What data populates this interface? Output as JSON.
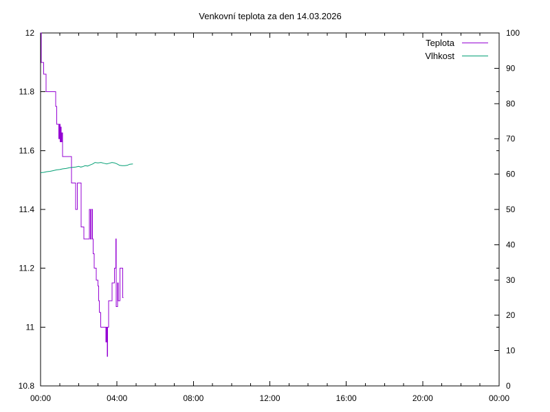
{
  "window": {
    "title": "Venkovní teplota za den 14.03.2026"
  },
  "colors": {
    "background": "#ffffff",
    "axis": "#000000",
    "teplota": "#9400d3",
    "vlhkost": "#009e73"
  },
  "chart_data": {
    "type": "line",
    "title": "Venkovní teplota za den 14.03.2026",
    "xlabel": "",
    "ylabel_left": "",
    "ylabel_right": "",
    "grid": false,
    "legend_position": "top-right-inside",
    "x_axis": {
      "unit": "time-of-day",
      "range_hours": [
        0,
        24
      ],
      "major_tick_hours": [
        0,
        4,
        8,
        12,
        16,
        20,
        24
      ],
      "major_tick_labels": [
        "00:00",
        "04:00",
        "08:00",
        "12:00",
        "16:00",
        "20:00",
        "00:00"
      ],
      "minor_tick_every_hours": 1
    },
    "y_left": {
      "range": [
        10.8,
        12.0
      ],
      "ticks": [
        12,
        11.8,
        11.6,
        11.4,
        11.2,
        11,
        10.8
      ],
      "tick_labels": [
        "12",
        "11.8",
        "11.6",
        "11.4",
        "11.2",
        "11",
        "10.8"
      ]
    },
    "y_right": {
      "range": [
        0,
        100
      ],
      "tick_step": 10,
      "tick_labels": [
        "100",
        "90",
        "80",
        "70",
        "60",
        "50",
        "40",
        "30",
        "20",
        "10",
        "0"
      ],
      "extra_unlabeled_ticks_at_left_values": [
        11.8,
        11.6,
        11.4,
        11.2,
        11.0
      ]
    },
    "series": [
      {
        "name": "Teplota",
        "axis": "left",
        "style": "steps",
        "color": "#9400d3",
        "points": [
          [
            "00:00",
            12.0
          ],
          [
            "00:02",
            11.9
          ],
          [
            "00:10",
            11.86
          ],
          [
            "00:17",
            11.8
          ],
          [
            "00:47",
            11.75
          ],
          [
            "00:51",
            11.69
          ],
          [
            "00:57",
            11.64
          ],
          [
            "00:59",
            11.69
          ],
          [
            "01:01",
            11.63
          ],
          [
            "01:03",
            11.68
          ],
          [
            "01:05",
            11.63
          ],
          [
            "01:07",
            11.66
          ],
          [
            "01:09",
            11.58
          ],
          [
            "01:37",
            11.49
          ],
          [
            "01:50",
            11.4
          ],
          [
            "01:56",
            11.49
          ],
          [
            "02:07",
            11.34
          ],
          [
            "02:16",
            11.3
          ],
          [
            "02:33",
            11.4
          ],
          [
            "02:36",
            11.3
          ],
          [
            "02:40",
            11.4
          ],
          [
            "02:43",
            11.3
          ],
          [
            "02:45",
            11.25
          ],
          [
            "02:48",
            11.2
          ],
          [
            "02:55",
            11.16
          ],
          [
            "03:00",
            11.14
          ],
          [
            "03:02",
            11.09
          ],
          [
            "03:05",
            11.05
          ],
          [
            "03:09",
            11.0
          ],
          [
            "03:25",
            10.95
          ],
          [
            "03:27",
            11.0
          ],
          [
            "03:29",
            10.9
          ],
          [
            "03:31",
            11.0
          ],
          [
            "03:34",
            11.09
          ],
          [
            "03:45",
            11.15
          ],
          [
            "03:52",
            11.2
          ],
          [
            "03:56",
            11.3
          ],
          [
            "03:58",
            11.07
          ],
          [
            "04:02",
            11.15
          ],
          [
            "04:04",
            11.09
          ],
          [
            "04:09",
            11.2
          ],
          [
            "04:17",
            11.2
          ],
          [
            "04:18",
            11.1
          ],
          [
            "04:20",
            11.1
          ]
        ]
      },
      {
        "name": "Vlhkost",
        "axis": "right",
        "style": "line",
        "color": "#009e73",
        "points": [
          [
            "00:00",
            60.4
          ],
          [
            "00:10",
            60.5
          ],
          [
            "00:20",
            60.7
          ],
          [
            "00:30",
            60.8
          ],
          [
            "00:40",
            61.0
          ],
          [
            "00:50",
            61.2
          ],
          [
            "01:00",
            61.3
          ],
          [
            "01:10",
            61.5
          ],
          [
            "01:20",
            61.6
          ],
          [
            "01:30",
            61.8
          ],
          [
            "01:40",
            61.9
          ],
          [
            "01:50",
            62.0
          ],
          [
            "02:00",
            62.2
          ],
          [
            "02:06",
            62.0
          ],
          [
            "02:12",
            62.1
          ],
          [
            "02:20",
            62.4
          ],
          [
            "02:28",
            62.3
          ],
          [
            "02:36",
            62.6
          ],
          [
            "02:44",
            62.9
          ],
          [
            "02:51",
            63.3
          ],
          [
            "03:00",
            63.2
          ],
          [
            "03:10",
            63.3
          ],
          [
            "03:18",
            63.1
          ],
          [
            "03:28",
            62.9
          ],
          [
            "03:36",
            63.1
          ],
          [
            "03:44",
            63.3
          ],
          [
            "03:52",
            63.2
          ],
          [
            "04:00",
            62.9
          ],
          [
            "04:08",
            62.5
          ],
          [
            "04:16",
            62.4
          ],
          [
            "04:24",
            62.4
          ],
          [
            "04:32",
            62.5
          ],
          [
            "04:40",
            62.8
          ],
          [
            "04:50",
            62.9
          ]
        ]
      }
    ]
  }
}
